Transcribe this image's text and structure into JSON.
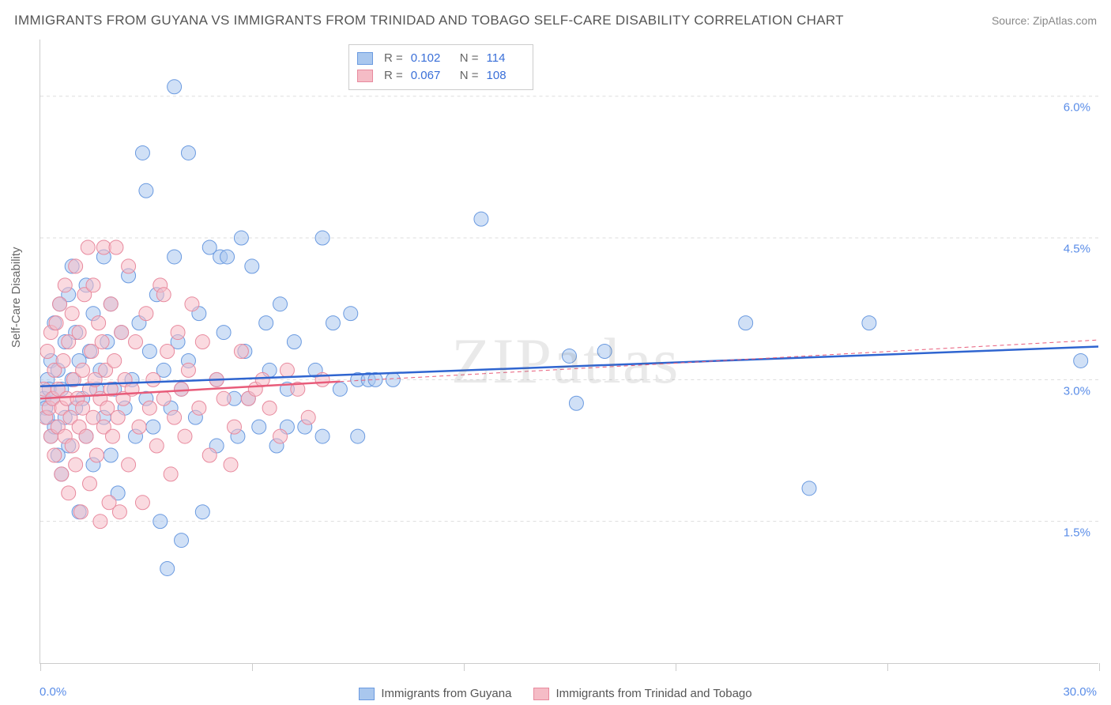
{
  "title": "IMMIGRANTS FROM GUYANA VS IMMIGRANTS FROM TRINIDAD AND TOBAGO SELF-CARE DISABILITY CORRELATION CHART",
  "source_label": "Source:",
  "source_value": "ZipAtlas.com",
  "watermark": "ZIPatlas",
  "ylabel": "Self-Care Disability",
  "chart": {
    "type": "scatter",
    "xlim": [
      0,
      30
    ],
    "ylim": [
      0,
      6.6
    ],
    "x_ticks_pct": [
      0,
      30
    ],
    "x_tick_labels": [
      "0.0%",
      "30.0%"
    ],
    "x_tick_positions": [
      0,
      6,
      12,
      18,
      24,
      30
    ],
    "y_grid": [
      1.5,
      3.0,
      4.5,
      6.0
    ],
    "y_tick_labels": [
      "1.5%",
      "3.0%",
      "4.5%",
      "6.0%"
    ],
    "background": "#ffffff",
    "grid_color": "#dddddd",
    "axis_color": "#cccccc",
    "marker_radius": 9,
    "marker_opacity": 0.55,
    "series": [
      {
        "name": "Immigrants from Guyana",
        "color_fill": "#a9c7ee",
        "color_stroke": "#6a9ae0",
        "R": "0.102",
        "N": "114",
        "trend": {
          "x1": 0,
          "y1": 2.93,
          "x2": 30,
          "y2": 3.35,
          "color": "#2f65d0",
          "width": 2.5,
          "dash": "none"
        },
        "points": [
          [
            0.1,
            2.8
          ],
          [
            0.15,
            2.7
          ],
          [
            0.2,
            3.0
          ],
          [
            0.2,
            2.6
          ],
          [
            0.25,
            2.9
          ],
          [
            0.3,
            3.2
          ],
          [
            0.3,
            2.4
          ],
          [
            0.35,
            2.8
          ],
          [
            0.4,
            3.6
          ],
          [
            0.4,
            2.5
          ],
          [
            0.5,
            3.1
          ],
          [
            0.5,
            2.2
          ],
          [
            0.55,
            3.8
          ],
          [
            0.6,
            2.9
          ],
          [
            0.6,
            2.0
          ],
          [
            0.7,
            3.4
          ],
          [
            0.7,
            2.6
          ],
          [
            0.8,
            3.9
          ],
          [
            0.8,
            2.3
          ],
          [
            0.9,
            3.0
          ],
          [
            0.9,
            4.2
          ],
          [
            1.0,
            2.7
          ],
          [
            1.0,
            3.5
          ],
          [
            1.1,
            1.6
          ],
          [
            1.1,
            3.2
          ],
          [
            1.2,
            2.8
          ],
          [
            1.3,
            4.0
          ],
          [
            1.3,
            2.4
          ],
          [
            1.4,
            3.3
          ],
          [
            1.5,
            2.1
          ],
          [
            1.5,
            3.7
          ],
          [
            1.6,
            2.9
          ],
          [
            1.7,
            3.1
          ],
          [
            1.8,
            4.3
          ],
          [
            1.8,
            2.6
          ],
          [
            1.9,
            3.4
          ],
          [
            2.0,
            2.2
          ],
          [
            2.0,
            3.8
          ],
          [
            2.1,
            2.9
          ],
          [
            2.2,
            1.8
          ],
          [
            2.3,
            3.5
          ],
          [
            2.4,
            2.7
          ],
          [
            2.5,
            4.1
          ],
          [
            2.6,
            3.0
          ],
          [
            2.7,
            2.4
          ],
          [
            2.8,
            3.6
          ],
          [
            2.9,
            5.4
          ],
          [
            3.0,
            2.8
          ],
          [
            3.0,
            5.0
          ],
          [
            3.1,
            3.3
          ],
          [
            3.2,
            2.5
          ],
          [
            3.3,
            3.9
          ],
          [
            3.4,
            1.5
          ],
          [
            3.5,
            3.1
          ],
          [
            3.6,
            1.0
          ],
          [
            3.7,
            2.7
          ],
          [
            3.8,
            4.3
          ],
          [
            3.8,
            6.1
          ],
          [
            3.9,
            3.4
          ],
          [
            4.0,
            2.9
          ],
          [
            4.0,
            1.3
          ],
          [
            4.2,
            3.2
          ],
          [
            4.2,
            5.4
          ],
          [
            4.4,
            2.6
          ],
          [
            4.5,
            3.7
          ],
          [
            4.6,
            1.6
          ],
          [
            4.8,
            4.4
          ],
          [
            5.0,
            3.0
          ],
          [
            5.0,
            2.3
          ],
          [
            5.1,
            4.3
          ],
          [
            5.2,
            3.5
          ],
          [
            5.3,
            4.3
          ],
          [
            5.5,
            2.8
          ],
          [
            5.6,
            2.4
          ],
          [
            5.7,
            4.5
          ],
          [
            5.8,
            3.3
          ],
          [
            5.9,
            2.8
          ],
          [
            6.0,
            4.2
          ],
          [
            6.2,
            2.5
          ],
          [
            6.4,
            3.6
          ],
          [
            6.5,
            3.1
          ],
          [
            6.7,
            2.3
          ],
          [
            6.8,
            3.8
          ],
          [
            7.0,
            2.5
          ],
          [
            7.0,
            2.9
          ],
          [
            7.2,
            3.4
          ],
          [
            7.5,
            2.5
          ],
          [
            7.8,
            3.1
          ],
          [
            8.0,
            4.5
          ],
          [
            8.0,
            2.4
          ],
          [
            8.3,
            3.6
          ],
          [
            8.5,
            2.9
          ],
          [
            8.8,
            3.7
          ],
          [
            9.0,
            3.0
          ],
          [
            9.0,
            2.4
          ],
          [
            9.3,
            3.0
          ],
          [
            9.5,
            3.0
          ],
          [
            10.0,
            3.0
          ],
          [
            12.5,
            4.7
          ],
          [
            15.0,
            3.25
          ],
          [
            15.2,
            2.75
          ],
          [
            16.0,
            3.3
          ],
          [
            20.0,
            3.6
          ],
          [
            21.8,
            1.85
          ],
          [
            23.5,
            3.6
          ],
          [
            29.5,
            3.2
          ]
        ]
      },
      {
        "name": "Immigrants from Trinidad and Tobago",
        "color_fill": "#f5bcc6",
        "color_stroke": "#e88a9e",
        "R": "0.067",
        "N": "108",
        "trend_solid": {
          "x1": 0,
          "y1": 2.8,
          "x2": 8.5,
          "y2": 2.98,
          "color": "#e85c7a",
          "width": 2.5
        },
        "trend_dash": {
          "x1": 8.5,
          "y1": 2.98,
          "x2": 30,
          "y2": 3.42,
          "color": "#e85c7a",
          "width": 1,
          "dash": "5,4"
        },
        "points": [
          [
            0.1,
            2.9
          ],
          [
            0.15,
            2.6
          ],
          [
            0.2,
            3.3
          ],
          [
            0.25,
            2.7
          ],
          [
            0.3,
            2.4
          ],
          [
            0.3,
            3.5
          ],
          [
            0.35,
            2.8
          ],
          [
            0.4,
            3.1
          ],
          [
            0.4,
            2.2
          ],
          [
            0.45,
            3.6
          ],
          [
            0.5,
            2.9
          ],
          [
            0.5,
            2.5
          ],
          [
            0.55,
            3.8
          ],
          [
            0.6,
            2.7
          ],
          [
            0.6,
            2.0
          ],
          [
            0.65,
            3.2
          ],
          [
            0.7,
            2.4
          ],
          [
            0.7,
            4.0
          ],
          [
            0.75,
            2.8
          ],
          [
            0.8,
            3.4
          ],
          [
            0.8,
            1.8
          ],
          [
            0.85,
            2.6
          ],
          [
            0.9,
            3.7
          ],
          [
            0.9,
            2.3
          ],
          [
            0.95,
            3.0
          ],
          [
            1.0,
            2.1
          ],
          [
            1.0,
            4.2
          ],
          [
            1.05,
            2.8
          ],
          [
            1.1,
            3.5
          ],
          [
            1.1,
            2.5
          ],
          [
            1.15,
            1.6
          ],
          [
            1.2,
            3.1
          ],
          [
            1.2,
            2.7
          ],
          [
            1.25,
            3.9
          ],
          [
            1.3,
            2.4
          ],
          [
            1.35,
            4.4
          ],
          [
            1.4,
            2.9
          ],
          [
            1.4,
            1.9
          ],
          [
            1.45,
            3.3
          ],
          [
            1.5,
            2.6
          ],
          [
            1.5,
            4.0
          ],
          [
            1.55,
            3.0
          ],
          [
            1.6,
            2.2
          ],
          [
            1.65,
            3.6
          ],
          [
            1.7,
            2.8
          ],
          [
            1.7,
            1.5
          ],
          [
            1.75,
            3.4
          ],
          [
            1.8,
            2.5
          ],
          [
            1.8,
            4.4
          ],
          [
            1.85,
            3.1
          ],
          [
            1.9,
            2.7
          ],
          [
            1.95,
            1.7
          ],
          [
            2.0,
            3.8
          ],
          [
            2.0,
            2.9
          ],
          [
            2.05,
            2.4
          ],
          [
            2.1,
            3.2
          ],
          [
            2.15,
            4.4
          ],
          [
            2.2,
            2.6
          ],
          [
            2.25,
            1.6
          ],
          [
            2.3,
            3.5
          ],
          [
            2.35,
            2.8
          ],
          [
            2.4,
            3.0
          ],
          [
            2.5,
            2.1
          ],
          [
            2.5,
            4.2
          ],
          [
            2.6,
            2.9
          ],
          [
            2.7,
            3.4
          ],
          [
            2.8,
            2.5
          ],
          [
            2.9,
            1.7
          ],
          [
            3.0,
            3.7
          ],
          [
            3.1,
            2.7
          ],
          [
            3.2,
            3.0
          ],
          [
            3.3,
            2.3
          ],
          [
            3.4,
            4.0
          ],
          [
            3.5,
            3.9
          ],
          [
            3.5,
            2.8
          ],
          [
            3.6,
            3.3
          ],
          [
            3.7,
            2.0
          ],
          [
            3.8,
            2.6
          ],
          [
            3.9,
            3.5
          ],
          [
            4.0,
            2.9
          ],
          [
            4.1,
            2.4
          ],
          [
            4.2,
            3.1
          ],
          [
            4.3,
            3.8
          ],
          [
            4.5,
            2.7
          ],
          [
            4.6,
            3.4
          ],
          [
            4.8,
            2.2
          ],
          [
            5.0,
            3.0
          ],
          [
            5.2,
            2.8
          ],
          [
            5.4,
            2.1
          ],
          [
            5.5,
            2.5
          ],
          [
            5.7,
            3.3
          ],
          [
            5.9,
            2.8
          ],
          [
            6.1,
            2.9
          ],
          [
            6.3,
            3.0
          ],
          [
            6.5,
            2.7
          ],
          [
            6.8,
            2.4
          ],
          [
            7.0,
            3.1
          ],
          [
            7.3,
            2.9
          ],
          [
            7.6,
            2.6
          ],
          [
            8.0,
            3.0
          ]
        ]
      }
    ]
  },
  "legend_top": {
    "rows": [
      {
        "swatch_fill": "#a9c7ee",
        "swatch_stroke": "#6a9ae0",
        "r_label": "R =",
        "r_val": "0.102",
        "n_label": "N =",
        "n_val": "114"
      },
      {
        "swatch_fill": "#f5bcc6",
        "swatch_stroke": "#e88a9e",
        "r_label": "R =",
        "r_val": "0.067",
        "n_label": "N =",
        "n_val": "108"
      }
    ]
  },
  "legend_bottom": {
    "items": [
      {
        "swatch_fill": "#a9c7ee",
        "swatch_stroke": "#6a9ae0",
        "label": "Immigrants from Guyana"
      },
      {
        "swatch_fill": "#f5bcc6",
        "swatch_stroke": "#e88a9e",
        "label": "Immigrants from Trinidad and Tobago"
      }
    ]
  }
}
